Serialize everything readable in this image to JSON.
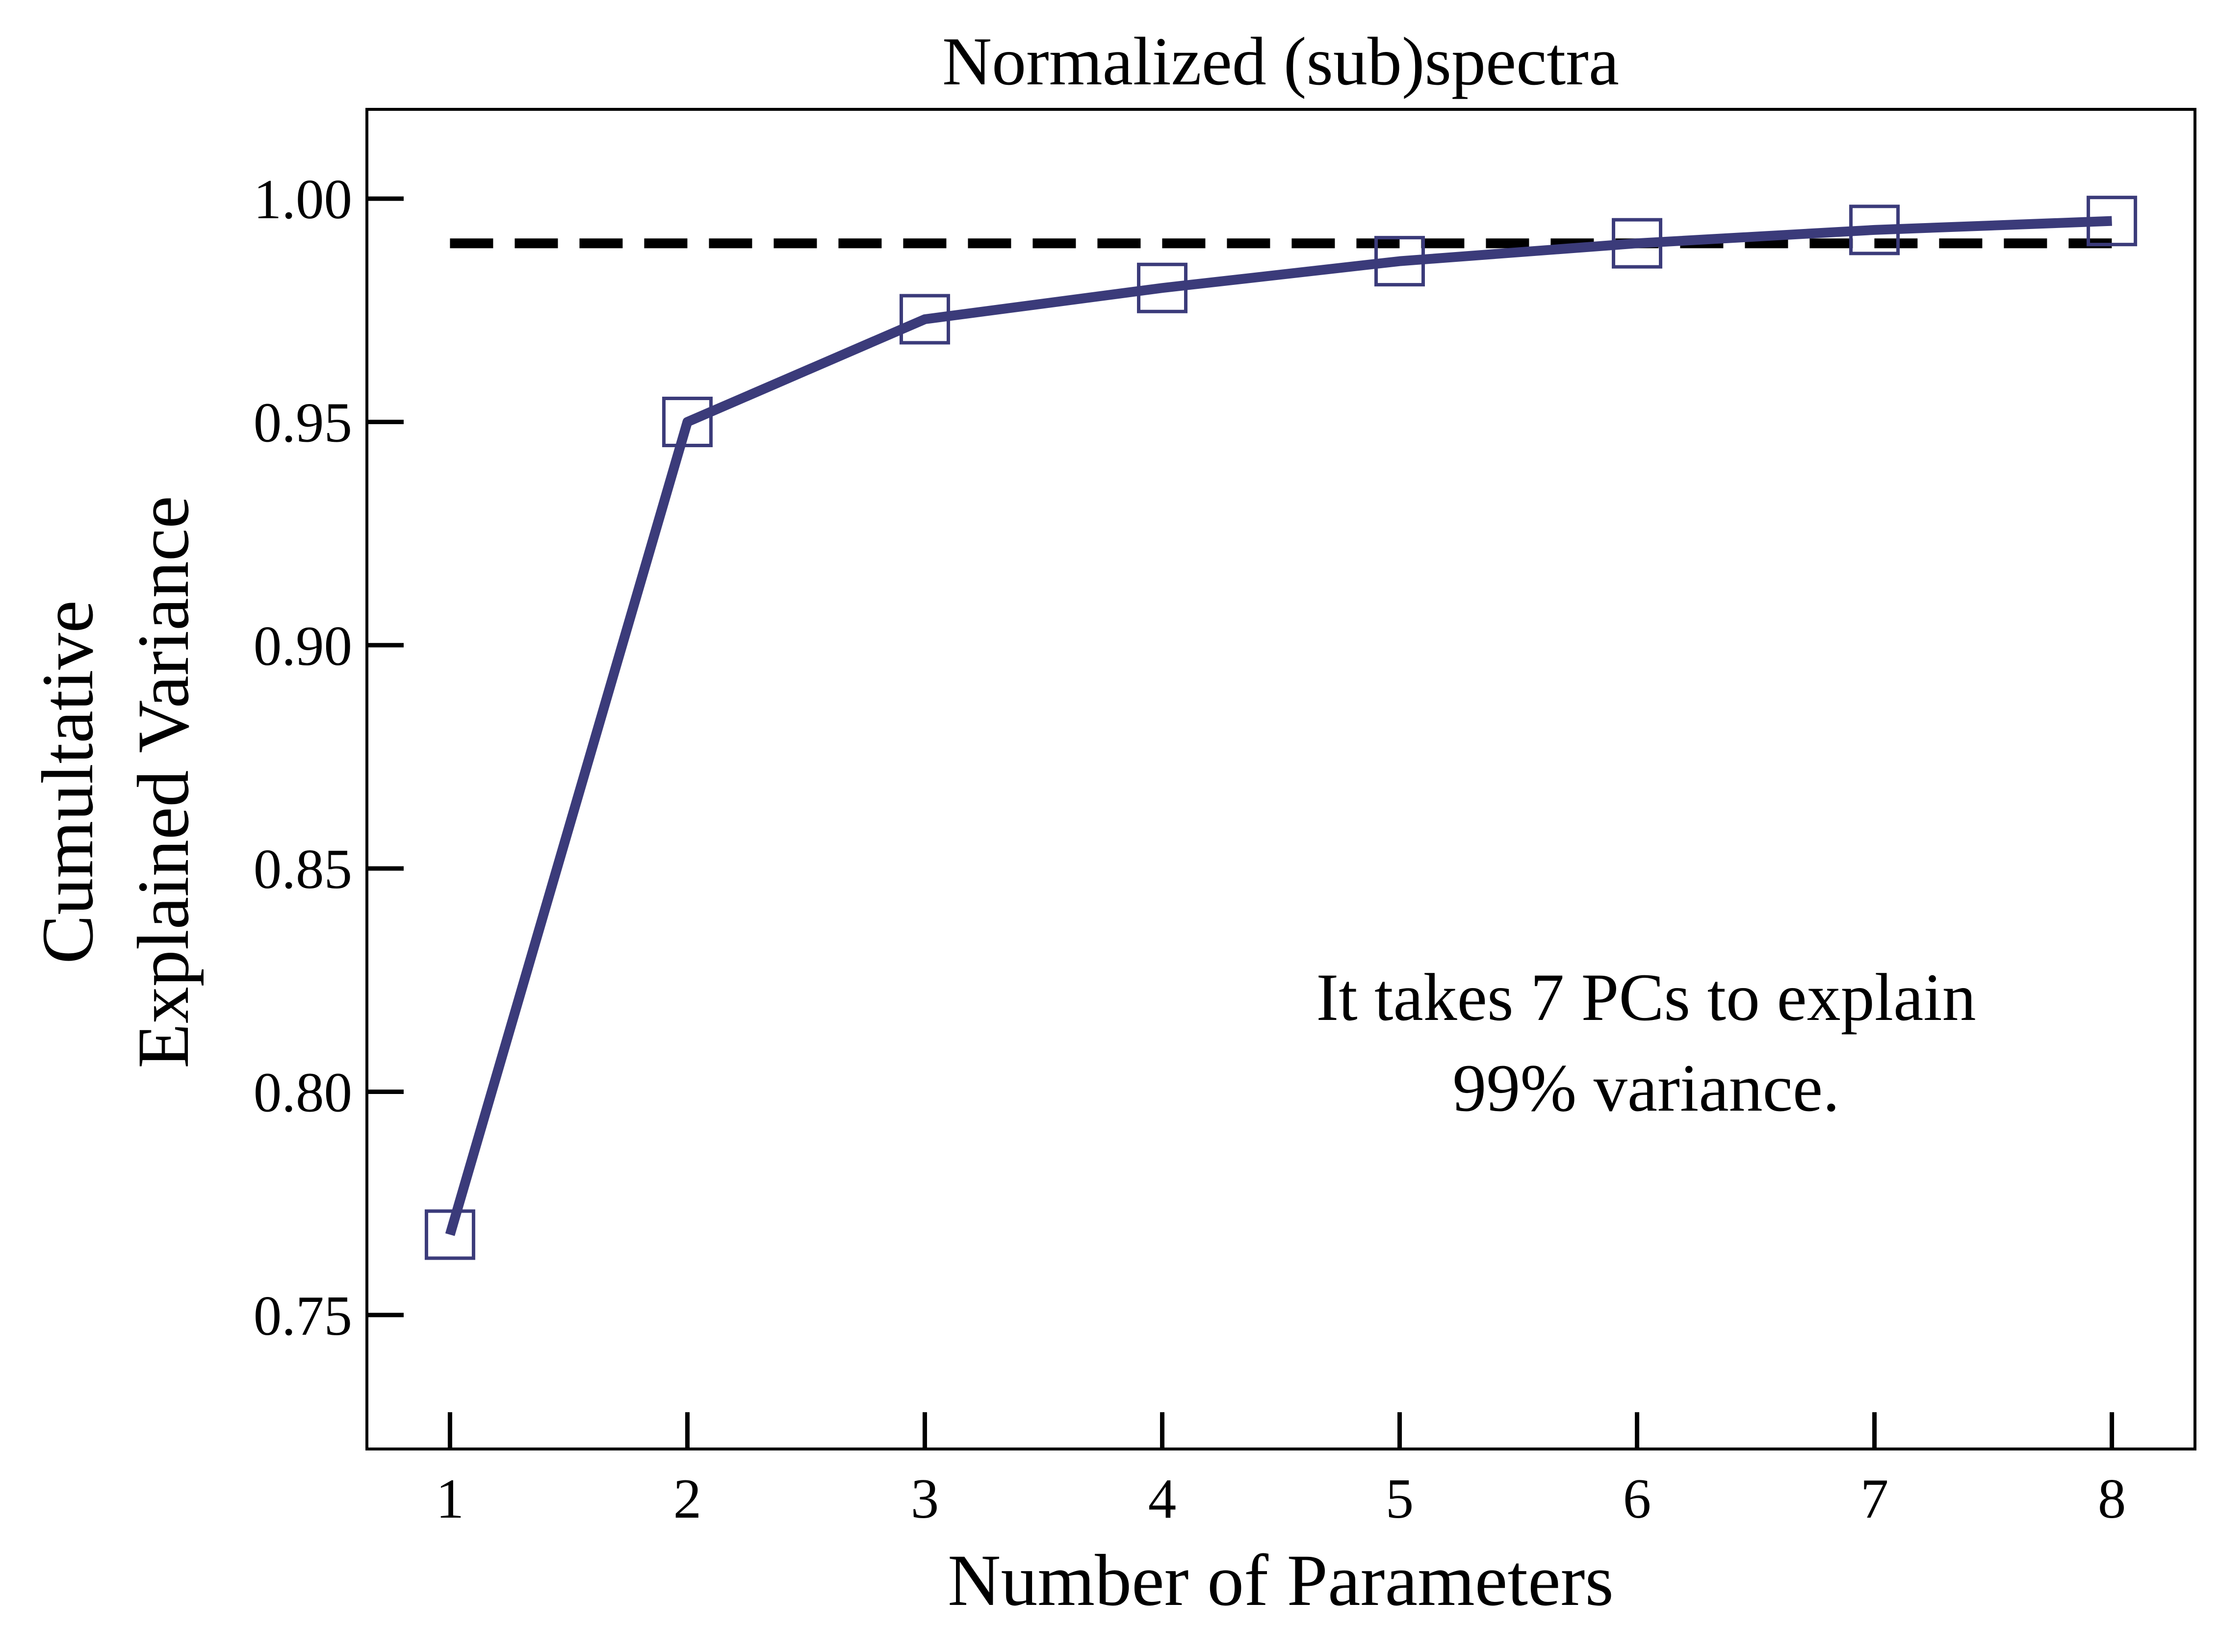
{
  "chart_data": {
    "type": "line",
    "title": "Normalized (sub)spectra",
    "xlabel": "Number of Parameters",
    "ylabel_lines": [
      "Cumultative",
      "Explained Variance"
    ],
    "x": [
      1,
      2,
      3,
      4,
      5,
      6,
      7,
      8
    ],
    "series": [
      {
        "values": [
          0.768,
          0.95,
          0.973,
          0.98,
          0.986,
          0.99,
          0.993,
          0.995
        ],
        "color": "#3b3b7a",
        "marker": "open-square"
      }
    ],
    "threshold": {
      "value": 0.99,
      "color": "#000000",
      "style": "dashed"
    },
    "annotation_lines": [
      "It takes 7 PCs to explain",
      "99% variance."
    ],
    "xlim": [
      0.65,
      8.35
    ],
    "ylim": [
      0.72,
      1.02
    ],
    "xticks": [
      1,
      2,
      3,
      4,
      5,
      6,
      7,
      8
    ],
    "xtick_labels": [
      "1",
      "2",
      "3",
      "4",
      "5",
      "6",
      "7",
      "8"
    ],
    "yticks": [
      0.75,
      0.8,
      0.85,
      0.9,
      0.95,
      1.0
    ],
    "ytick_labels": [
      "0.75",
      "0.80",
      "0.85",
      "0.90",
      "0.95",
      "1.00"
    ],
    "grid": false,
    "legend": "none"
  }
}
